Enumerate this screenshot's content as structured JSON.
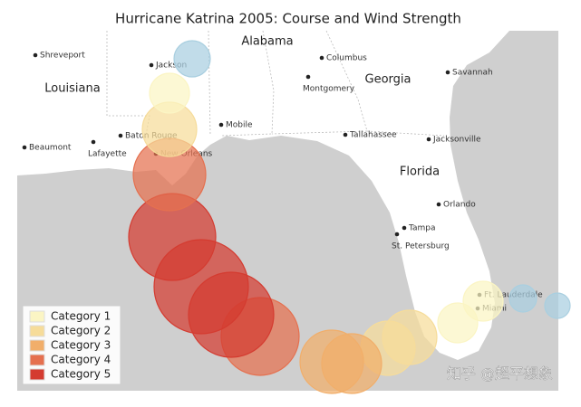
{
  "title": "Hurricane Katrina 2005: Course and Wind Strength",
  "states": [
    "Alabama",
    "Louisiana",
    "Georgia",
    "Florida"
  ],
  "cities": [
    "Shreveport",
    "Jackson",
    "Columbus",
    "Montgomery",
    "Savannah",
    "Mobile",
    "Baton Rouge",
    "New Orleans",
    "Beaumont",
    "Lafayette",
    "Tallahassee",
    "Jacksonville",
    "Orlando",
    "Tampa",
    "St. Petersburg",
    "Ft. Lauderdale",
    "Miami"
  ],
  "legend": [
    {
      "label": "Category 1",
      "category": 1,
      "color": "#fbf5c4"
    },
    {
      "label": "Category 2",
      "category": 2,
      "color": "#f6dc9a"
    },
    {
      "label": "Category 3",
      "category": 3,
      "color": "#f1ae6a"
    },
    {
      "label": "Category 4",
      "category": 4,
      "color": "#e5704f"
    },
    {
      "label": "Category 5",
      "category": 5,
      "color": "#d43b30"
    }
  ],
  "storm_color": "#a9cfe0",
  "track": [
    0,
    0,
    1,
    1,
    2,
    2,
    3,
    3,
    4,
    5,
    5,
    5,
    4,
    2,
    1,
    0
  ],
  "watermark": "知乎 @超平想象"
}
